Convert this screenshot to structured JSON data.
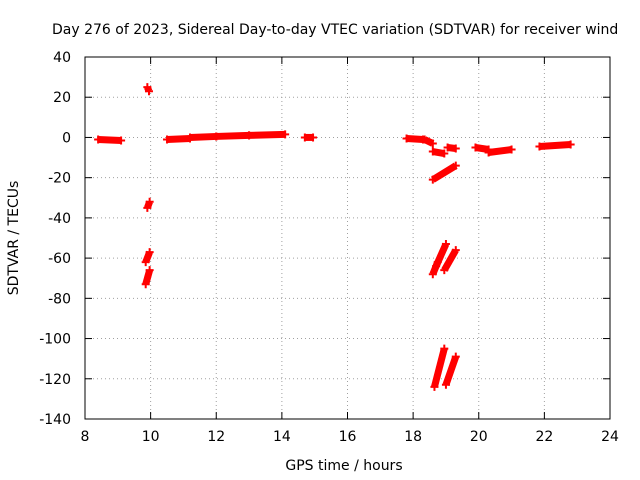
{
  "chart_data": {
    "type": "scatter",
    "title": "Day 276 of 2023, Sidereal Day-to-day VTEC variation (SDTVAR) for receiver wind",
    "xlabel": "GPS time / hours",
    "ylabel": "SDTVAR / TECUs",
    "xlim": [
      8,
      24
    ],
    "ylim": [
      -140,
      40
    ],
    "xticks": [
      8,
      10,
      12,
      14,
      16,
      18,
      20,
      22,
      24
    ],
    "yticks": [
      40,
      20,
      0,
      -20,
      -40,
      -60,
      -80,
      -100,
      -120,
      -140
    ],
    "grid": true,
    "series": [
      {
        "name": "SDTVAR",
        "color": "#ff0000",
        "marker": "plus",
        "segments": [
          [
            [
              8.4,
              -1
            ],
            [
              9.1,
              -1.5
            ]
          ],
          [
            [
              9.9,
              25
            ],
            [
              9.95,
              23
            ]
          ],
          [
            [
              9.9,
              -35
            ],
            [
              9.97,
              -32
            ]
          ],
          [
            [
              9.85,
              -62
            ],
            [
              9.97,
              -57
            ]
          ],
          [
            [
              9.85,
              -73
            ],
            [
              9.97,
              -66
            ]
          ],
          [
            [
              10.5,
              -1
            ],
            [
              11.2,
              -0.5
            ]
          ],
          [
            [
              11.2,
              0
            ],
            [
              12.0,
              0.5
            ]
          ],
          [
            [
              12.0,
              0.5
            ],
            [
              13.0,
              1
            ]
          ],
          [
            [
              13.0,
              1
            ],
            [
              14.1,
              1.5
            ]
          ],
          [
            [
              14.7,
              0
            ],
            [
              14.95,
              0
            ]
          ],
          [
            [
              17.8,
              -0.5
            ],
            [
              18.3,
              -1
            ]
          ],
          [
            [
              18.35,
              -1
            ],
            [
              18.6,
              -3
            ]
          ],
          [
            [
              18.6,
              -7
            ],
            [
              18.95,
              -8
            ]
          ],
          [
            [
              18.6,
              -21
            ],
            [
              19.3,
              -14
            ]
          ],
          [
            [
              18.6,
              -68
            ],
            [
              18.75,
              -62
            ]
          ],
          [
            [
              18.7,
              -64
            ],
            [
              19.0,
              -53
            ]
          ],
          [
            [
              18.95,
              -66
            ],
            [
              19.3,
              -56
            ]
          ],
          [
            [
              18.65,
              -124
            ],
            [
              18.95,
              -105
            ]
          ],
          [
            [
              19.0,
              -123
            ],
            [
              19.3,
              -109
            ]
          ],
          [
            [
              19.05,
              -5
            ],
            [
              19.3,
              -5.5
            ]
          ],
          [
            [
              19.9,
              -5
            ],
            [
              20.3,
              -6
            ]
          ],
          [
            [
              20.3,
              -7.5
            ],
            [
              21.0,
              -6
            ]
          ],
          [
            [
              21.85,
              -4.5
            ],
            [
              22.8,
              -3.5
            ]
          ]
        ]
      }
    ]
  }
}
